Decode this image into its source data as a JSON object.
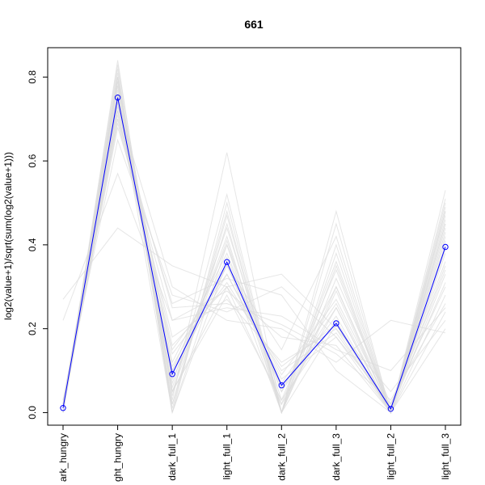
{
  "chart_data": {
    "type": "line",
    "title": "661",
    "xlabel": "",
    "ylabel": "log2(value+1)/sqrt(sum(log2(value+1)))",
    "categories": [
      "dark_hungry",
      "light_hungry",
      "dark_full_1",
      "light_full_1",
      "dark_full_2",
      "dark_full_3",
      "light_full_2",
      "light_full_3"
    ],
    "category_labels_visible": [
      "ark_hungry",
      "ght_hungry",
      "dark_full_1",
      "light_full_1",
      "dark_full_2",
      "dark_full_3",
      "light_full_2",
      "light_full_3"
    ],
    "ylim": [
      -0.03,
      0.87
    ],
    "yticks": [
      0.0,
      0.2,
      0.4,
      0.6,
      0.8
    ],
    "ytick_labels": [
      "0.0",
      "0.2",
      "0.4",
      "0.6",
      "0.8"
    ],
    "grid": false,
    "highlight_series": {
      "color": "#0000ff",
      "marker": "open-circle",
      "values": [
        0.011,
        0.751,
        0.092,
        0.359,
        0.065,
        0.213,
        0.009,
        0.395
      ]
    },
    "background_series_color": "#dcdcdc",
    "background_series": [
      [
        0.01,
        0.75,
        0.0,
        0.36,
        0.0,
        0.21,
        0.0,
        0.4
      ],
      [
        0.02,
        0.8,
        0.05,
        0.3,
        0.02,
        0.25,
        0.0,
        0.45
      ],
      [
        0.0,
        0.72,
        0.1,
        0.4,
        0.05,
        0.3,
        0.01,
        0.35
      ],
      [
        0.01,
        0.78,
        0.02,
        0.45,
        0.0,
        0.35,
        0.0,
        0.5
      ],
      [
        0.03,
        0.7,
        0.15,
        0.33,
        0.08,
        0.18,
        0.02,
        0.3
      ],
      [
        0.0,
        0.82,
        0.0,
        0.5,
        0.0,
        0.4,
        0.0,
        0.48
      ],
      [
        0.01,
        0.76,
        0.05,
        0.28,
        0.03,
        0.22,
        0.0,
        0.38
      ],
      [
        0.27,
        0.44,
        0.35,
        0.3,
        0.33,
        0.2,
        0.05,
        0.22
      ],
      [
        0.22,
        0.57,
        0.22,
        0.25,
        0.23,
        0.15,
        0.1,
        0.25
      ],
      [
        0.02,
        0.68,
        0.26,
        0.32,
        0.28,
        0.1,
        0.0,
        0.2
      ],
      [
        0.0,
        0.8,
        0.03,
        0.62,
        0.0,
        0.3,
        0.0,
        0.45
      ],
      [
        0.01,
        0.74,
        0.08,
        0.35,
        0.15,
        0.42,
        0.0,
        0.42
      ],
      [
        0.0,
        0.84,
        0.0,
        0.4,
        0.0,
        0.48,
        0.0,
        0.53
      ],
      [
        0.02,
        0.73,
        0.3,
        0.22,
        0.2,
        0.12,
        0.22,
        0.19
      ],
      [
        0.01,
        0.79,
        0.12,
        0.38,
        0.05,
        0.25,
        0.0,
        0.47
      ],
      [
        0.0,
        0.77,
        0.06,
        0.42,
        0.0,
        0.32,
        0.02,
        0.36
      ],
      [
        0.01,
        0.71,
        0.18,
        0.27,
        0.12,
        0.2,
        0.0,
        0.33
      ],
      [
        0.0,
        0.81,
        0.02,
        0.48,
        0.0,
        0.38,
        0.0,
        0.51
      ],
      [
        0.02,
        0.75,
        0.1,
        0.33,
        0.09,
        0.27,
        0.01,
        0.41
      ],
      [
        0.01,
        0.69,
        0.22,
        0.29,
        0.18,
        0.16,
        0.0,
        0.28
      ],
      [
        0.0,
        0.83,
        0.04,
        0.52,
        0.0,
        0.45,
        0.0,
        0.49
      ],
      [
        0.01,
        0.74,
        0.09,
        0.37,
        0.06,
        0.23,
        0.0,
        0.43
      ],
      [
        0.02,
        0.72,
        0.14,
        0.31,
        0.1,
        0.19,
        0.01,
        0.34
      ],
      [
        0.0,
        0.78,
        0.07,
        0.44,
        0.03,
        0.34,
        0.0,
        0.46
      ],
      [
        0.01,
        0.7,
        0.25,
        0.26,
        0.21,
        0.14,
        0.03,
        0.26
      ],
      [
        0.0,
        0.8,
        0.01,
        0.47,
        0.0,
        0.29,
        0.0,
        0.44
      ],
      [
        0.02,
        0.76,
        0.11,
        0.35,
        0.07,
        0.26,
        0.0,
        0.39
      ],
      [
        0.01,
        0.73,
        0.16,
        0.3,
        0.11,
        0.21,
        0.01,
        0.31
      ],
      [
        0.0,
        0.79,
        0.05,
        0.41,
        0.02,
        0.36,
        0.0,
        0.48
      ],
      [
        0.03,
        0.65,
        0.28,
        0.24,
        0.3,
        0.18,
        0.0,
        0.24
      ]
    ]
  }
}
